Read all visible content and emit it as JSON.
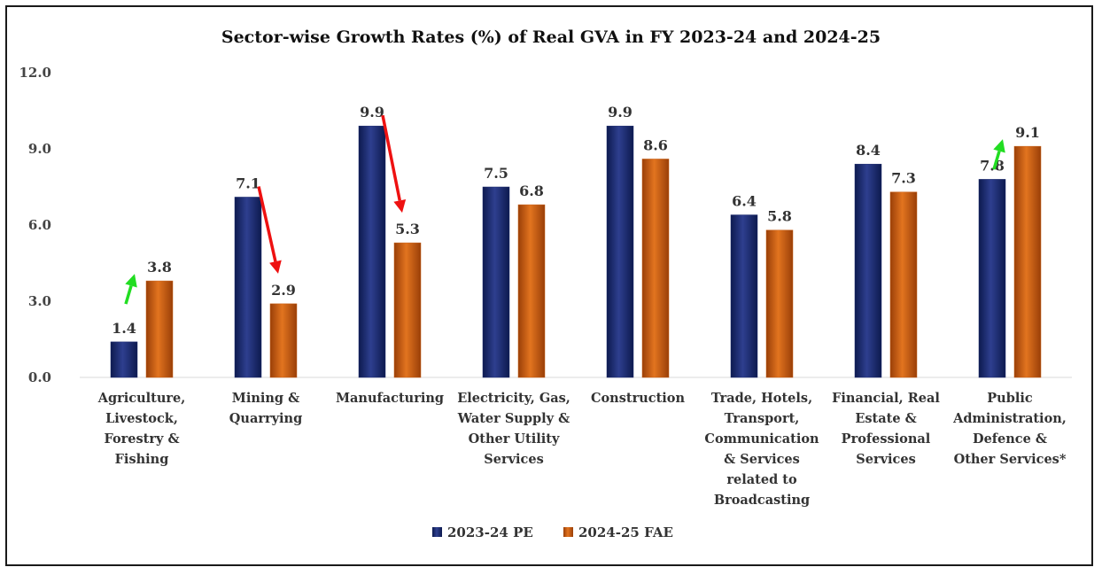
{
  "chart_data": {
    "type": "bar",
    "title": "Sector-wise Growth Rates (%) of Real GVA in FY 2023-24 and 2024-25",
    "xlabel": "",
    "ylabel": "",
    "ylim": [
      0,
      12
    ],
    "yticks": [
      "0.0",
      "3.0",
      "6.0",
      "9.0",
      "12.0"
    ],
    "grid": false,
    "legend_position": "bottom",
    "categories": [
      [
        "Agriculture,",
        "Livestock,",
        "Forestry &",
        "Fishing"
      ],
      [
        "Mining &",
        "Quarrying"
      ],
      [
        "Manufacturing"
      ],
      [
        "Electricity, Gas,",
        "Water Supply &",
        "Other Utility",
        "Services"
      ],
      [
        "Construction"
      ],
      [
        "Trade, Hotels,",
        "Transport,",
        "Communication",
        "& Services",
        "related to",
        "Broadcasting"
      ],
      [
        "Financial, Real",
        "Estate &",
        "Professional",
        "Services"
      ],
      [
        "Public",
        "Administration,",
        "Defence &",
        "Other Services*"
      ]
    ],
    "series": [
      {
        "name": "2023-24 PE",
        "color": "#1f2d6e",
        "values": [
          1.4,
          7.1,
          9.9,
          7.5,
          9.9,
          6.4,
          8.4,
          7.8
        ],
        "labels": [
          "1.4",
          "7.1",
          "9.9",
          "7.5",
          "9.9",
          "6.4",
          "8.4",
          "7.8"
        ]
      },
      {
        "name": "2024-25 FAE",
        "color": "#c55a11",
        "values": [
          3.8,
          2.9,
          5.3,
          6.8,
          8.6,
          5.8,
          7.3,
          9.1
        ],
        "labels": [
          "3.8",
          "2.9",
          "5.3",
          "6.8",
          "8.6",
          "5.8",
          "7.3",
          "9.1"
        ]
      }
    ],
    "annotations": [
      {
        "type": "arrow-up",
        "color": "#22dd22",
        "category_index": 0
      },
      {
        "type": "arrow-down",
        "color": "#ee1111",
        "category_index": 1
      },
      {
        "type": "arrow-down",
        "color": "#ee1111",
        "category_index": 2
      },
      {
        "type": "arrow-up",
        "color": "#22dd22",
        "category_index": 7
      }
    ]
  }
}
